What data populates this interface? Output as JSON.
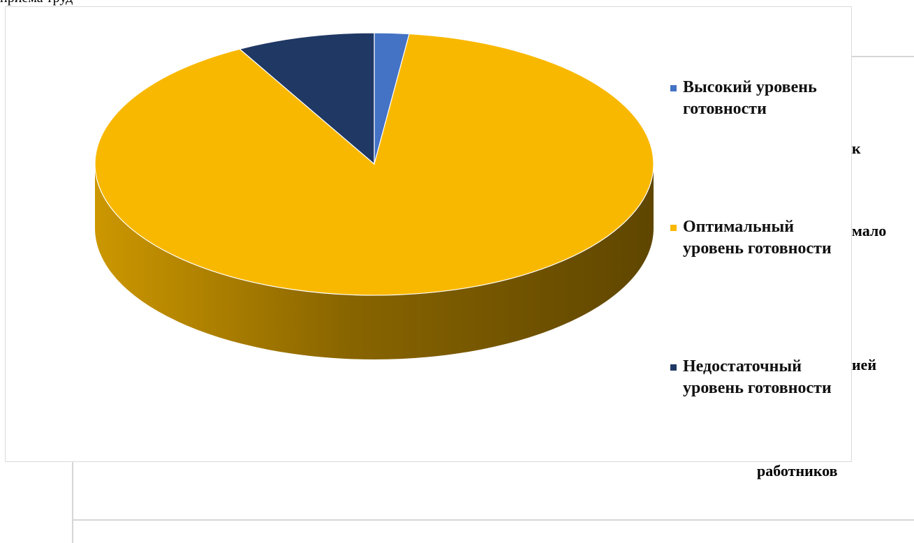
{
  "page": {
    "top_text": "приема труд",
    "bg_texts": [
      "к",
      "мало",
      "ией",
      "работников"
    ]
  },
  "chart_data": {
    "type": "pie",
    "style": "3d",
    "title": "",
    "start_angle_deg": 0,
    "direction": "clockwise",
    "legend_position": "right",
    "series": [
      {
        "name": "",
        "values": [
          2,
          90,
          8
        ],
        "categories": [
          "Высокий уровень готовности",
          "Оптимальный уровень готовности",
          "Недостаточный уровень готовности"
        ]
      }
    ],
    "legend": [
      {
        "label": "Высокий уровень готовности",
        "color": "#4472C4"
      },
      {
        "label": "Оптимальный уровень готовности",
        "color": "#F9B800"
      },
      {
        "label": "Недостаточный уровень готовности",
        "color": "#203864"
      }
    ]
  }
}
